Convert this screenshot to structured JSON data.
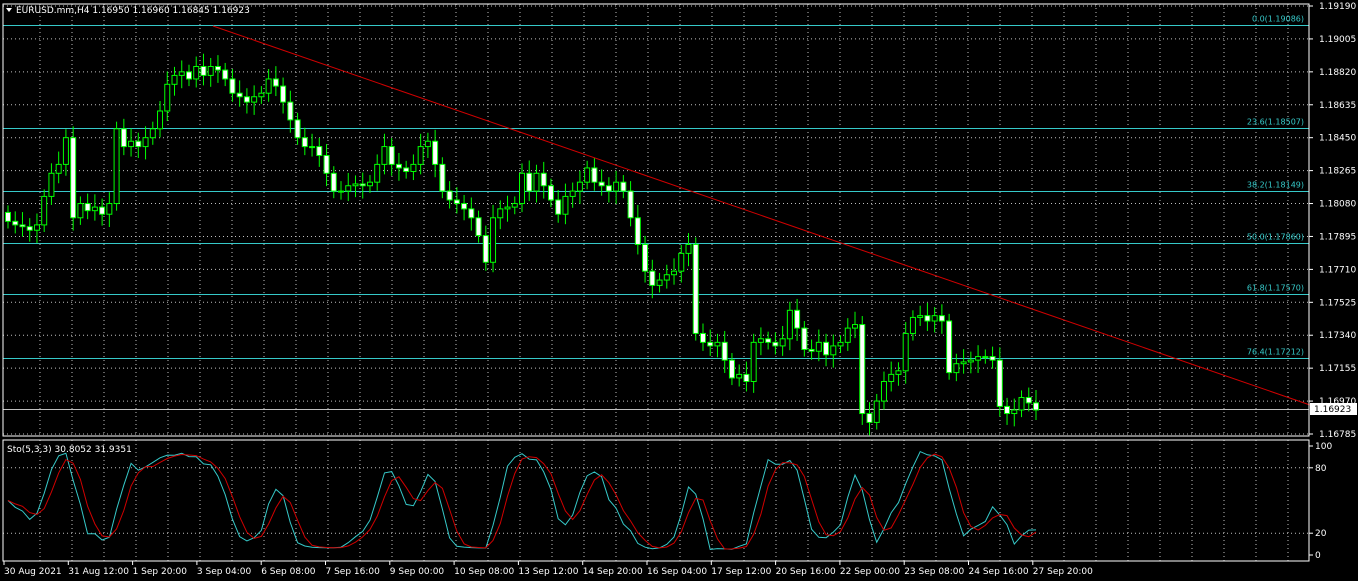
{
  "colors": {
    "background": "#000000",
    "grid": "#c0c0c0",
    "axis": "#ffffff",
    "text": "#ffffff",
    "candle": "#00ff00",
    "fib": "#36c9c9",
    "trendline": "#d00000",
    "stoch_main": "#36c9c9",
    "stoch_signal": "#d00000",
    "price_badge_bg": "#ffffff",
    "price_badge_text": "#000000"
  },
  "header": {
    "title": "EURUSD.mm,H4  1.16950 1.16960 1.16845 1.16923",
    "triangle_icon": "triangle-down-icon"
  },
  "price_axis": {
    "labels": [
      "1.19190",
      "1.19005",
      "1.18820",
      "1.18635",
      "1.18450",
      "1.18265",
      "1.18080",
      "1.17895",
      "1.17710",
      "1.17525",
      "1.17340",
      "1.17155",
      "1.16970",
      "1.16785"
    ],
    "current": "1.16923"
  },
  "fib_levels": [
    {
      "label": "0.0(1.19086)",
      "price": 1.19086
    },
    {
      "label": "23.6(1.18507)",
      "price": 1.18507
    },
    {
      "label": "38.2(1.18149)",
      "price": 1.18149
    },
    {
      "label": "50.0(1.17860)",
      "price": 1.1786
    },
    {
      "label": "61.8(1.17570)",
      "price": 1.1757
    },
    {
      "label": "76.4(1.17212)",
      "price": 1.17212
    },
    {
      "label": "",
      "price": 1.16923
    }
  ],
  "stoch": {
    "title": "Sto(5,3,3) 30.8052 31.9351",
    "axis_labels": [
      "100",
      "80",
      "20",
      "0"
    ]
  },
  "time_axis": {
    "labels": [
      "30 Aug 2021",
      "31 Aug 12:00",
      "1 Sep 20:00",
      "3 Sep 04:00",
      "6 Sep 08:00",
      "7 Sep 16:00",
      "9 Sep 00:00",
      "10 Sep 08:00",
      "13 Sep 12:00",
      "14 Sep 20:00",
      "16 Sep 04:00",
      "17 Sep 12:00",
      "20 Sep 16:00",
      "22 Sep 00:00",
      "23 Sep 08:00",
      "24 Sep 16:00",
      "27 Sep 20:00"
    ]
  },
  "chart_data": {
    "type": "candlestick",
    "symbol": "EURUSD.mm",
    "timeframe": "H4",
    "ylim": [
      1.16785,
      1.1919
    ],
    "closes": [
      1.1798,
      1.1796,
      1.1795,
      1.1793,
      1.1796,
      1.1812,
      1.1825,
      1.183,
      1.1845,
      1.18,
      1.1808,
      1.1804,
      1.1806,
      1.1802,
      1.1808,
      1.185,
      1.184,
      1.1843,
      1.184,
      1.1845,
      1.185,
      1.186,
      1.1875,
      1.188,
      1.1882,
      1.1878,
      1.1885,
      1.188,
      1.1885,
      1.1883,
      1.1878,
      1.187,
      1.1868,
      1.1865,
      1.1868,
      1.187,
      1.1878,
      1.1874,
      1.1865,
      1.1855,
      1.1845,
      1.184,
      1.184,
      1.1835,
      1.1825,
      1.1815,
      1.1815,
      1.1818,
      1.1819,
      1.1818,
      1.182,
      1.183,
      1.184,
      1.183,
      1.1828,
      1.1826,
      1.183,
      1.184,
      1.1843,
      1.183,
      1.1815,
      1.181,
      1.1808,
      1.1805,
      1.18,
      1.179,
      1.1775,
      1.18,
      1.1805,
      1.1806,
      1.1808,
      1.1825,
      1.1815,
      1.1825,
      1.1818,
      1.181,
      1.1802,
      1.1812,
      1.1815,
      1.182,
      1.1828,
      1.182,
      1.1818,
      1.1815,
      1.182,
      1.1815,
      1.18,
      1.1785,
      1.177,
      1.1762,
      1.1765,
      1.1768,
      1.177,
      1.178,
      1.1785,
      1.1735,
      1.173,
      1.1728,
      1.173,
      1.172,
      1.171,
      1.1712,
      1.1708,
      1.173,
      1.1732,
      1.173,
      1.1728,
      1.1732,
      1.1748,
      1.1738,
      1.1726,
      1.1725,
      1.173,
      1.1723,
      1.1728,
      1.173,
      1.1738,
      1.174,
      1.169,
      1.1685,
      1.1697,
      1.1708,
      1.1712,
      1.1714,
      1.1735,
      1.1744,
      1.1745,
      1.1742,
      1.1745,
      1.1742,
      1.1713,
      1.1718,
      1.1719,
      1.172,
      1.1722,
      1.1722,
      1.172,
      1.1694,
      1.169,
      1.1692,
      1.1699,
      1.1696,
      1.1692
    ]
  }
}
